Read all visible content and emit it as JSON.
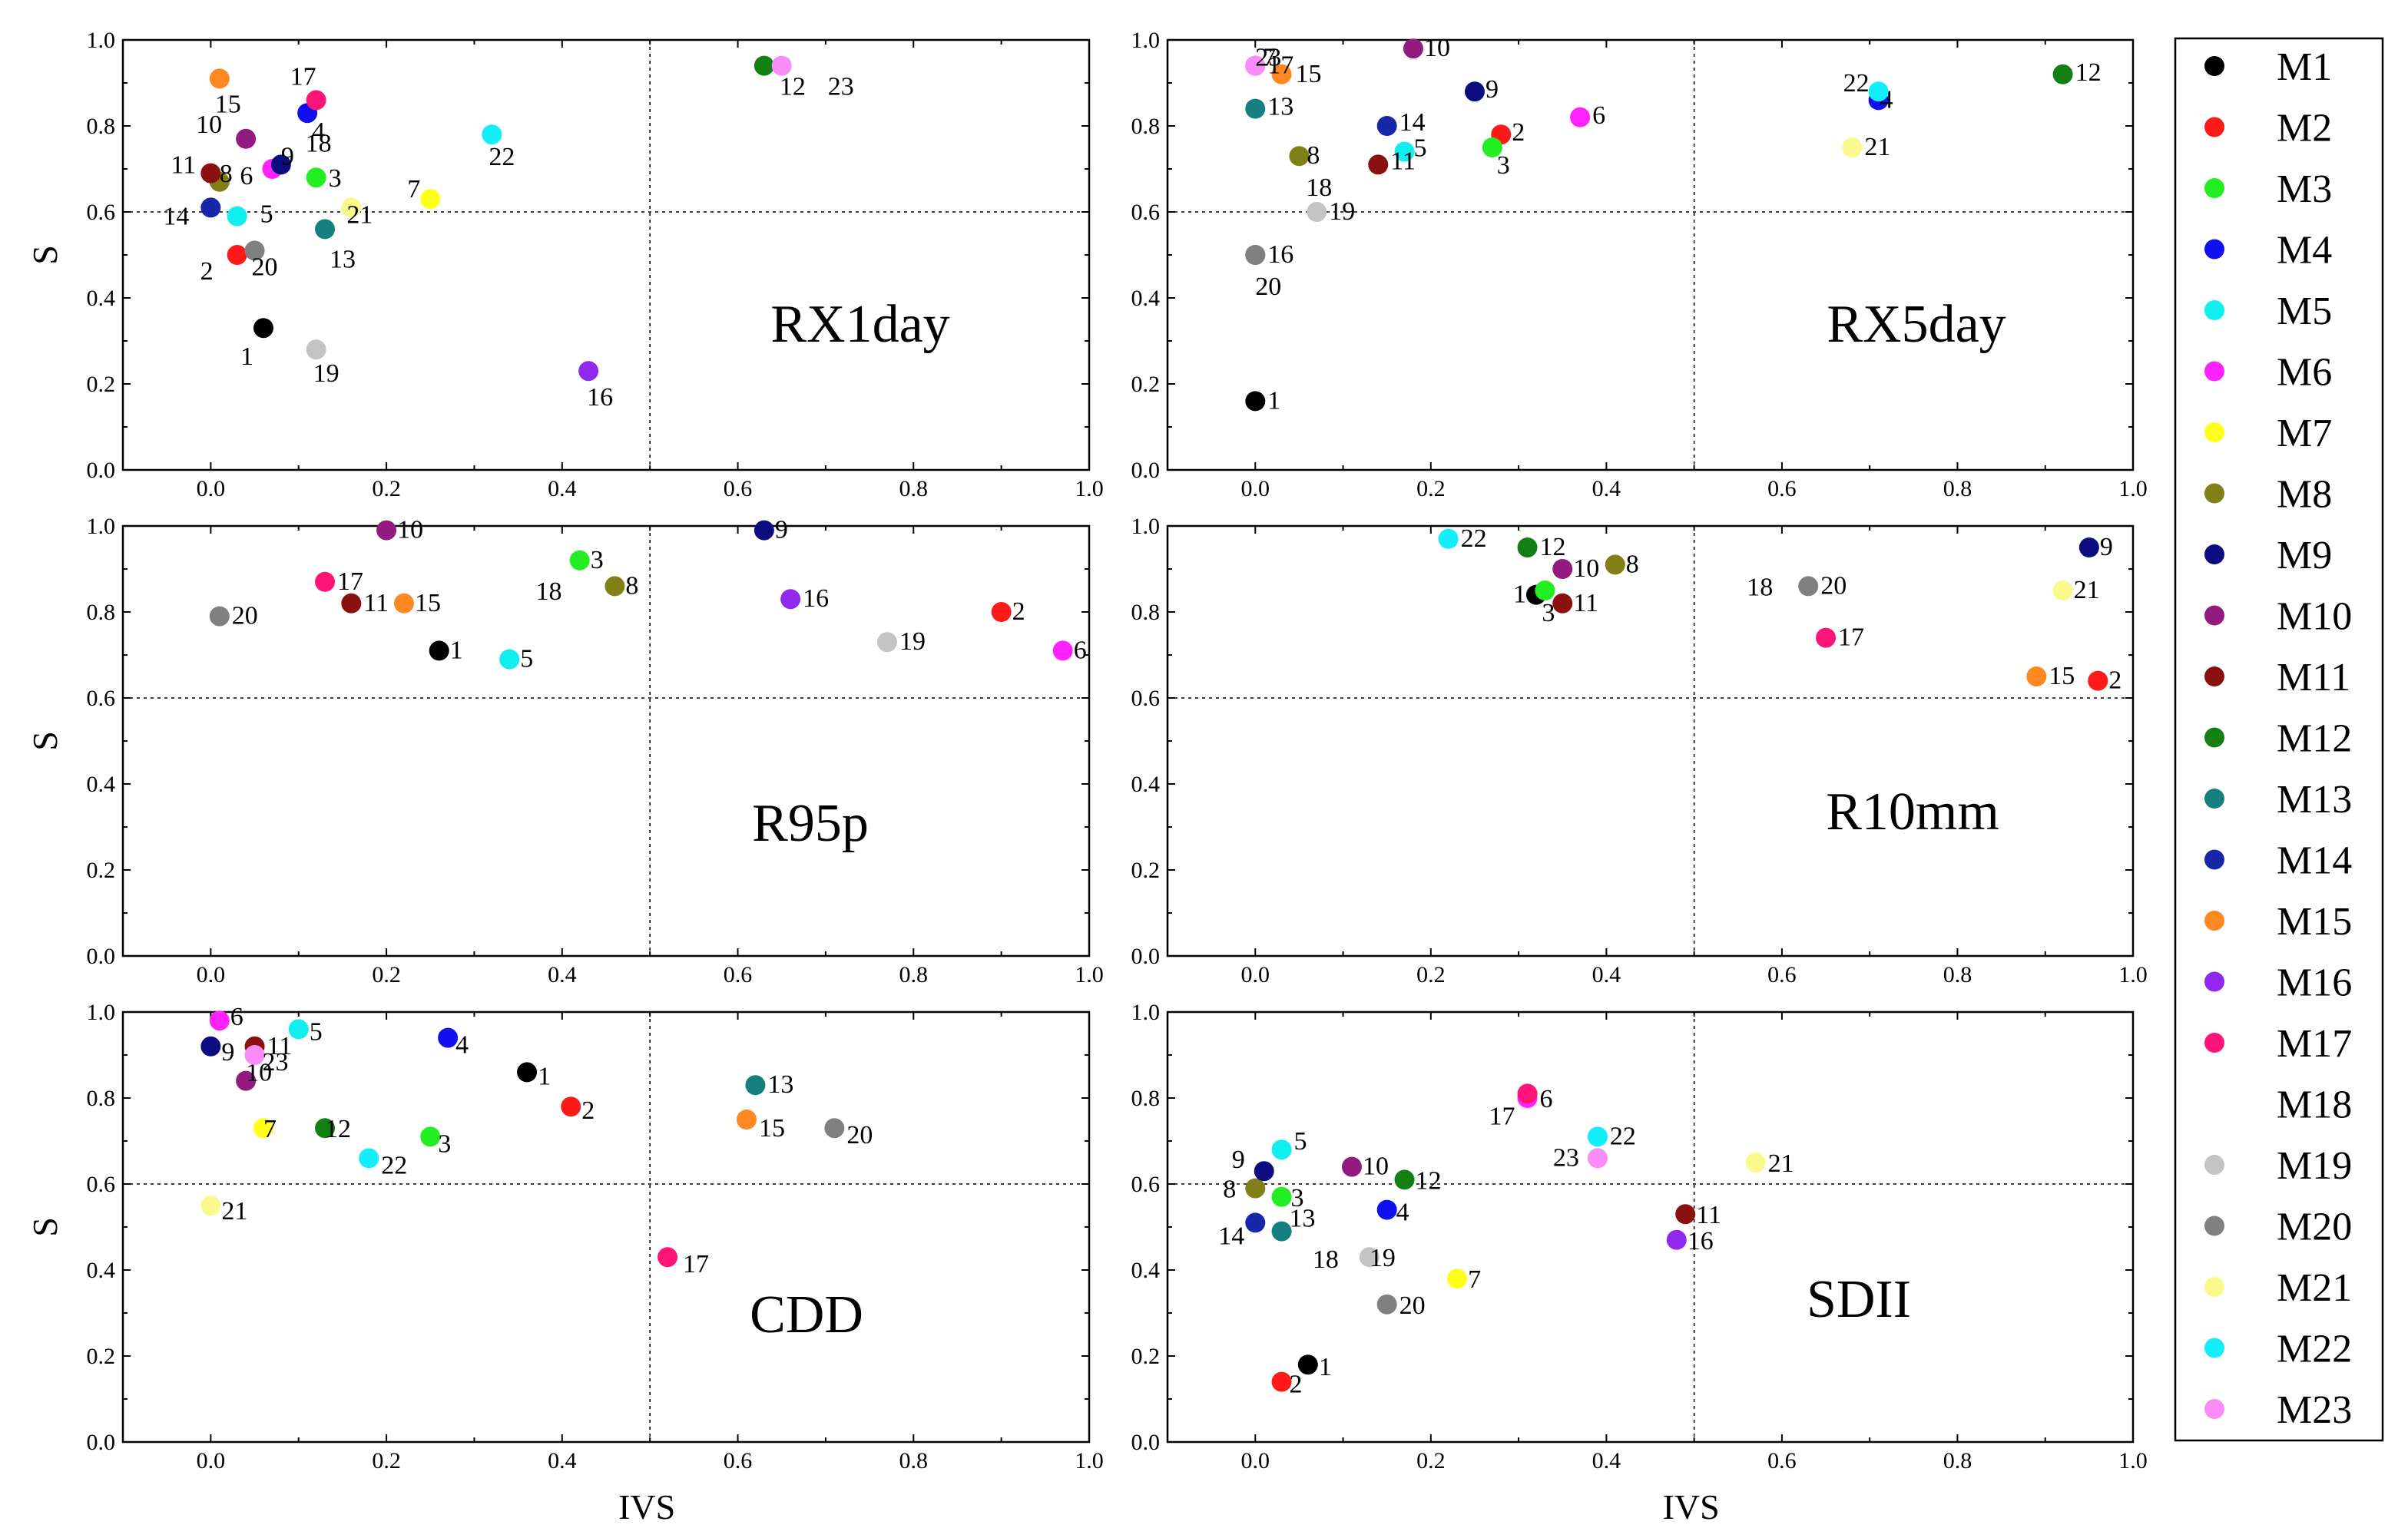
{
  "legend": {
    "items": [
      {
        "label": "M1",
        "color": "#000000"
      },
      {
        "label": "M2",
        "color": "#ff1a1a"
      },
      {
        "label": "M3",
        "color": "#22ee22"
      },
      {
        "label": "M4",
        "color": "#1010ee"
      },
      {
        "label": "M5",
        "color": "#11eeee"
      },
      {
        "label": "M6",
        "color": "#ff22ff"
      },
      {
        "label": "M7",
        "color": "#ffff1a"
      },
      {
        "label": "M8",
        "color": "#808016"
      },
      {
        "label": "M9",
        "color": "#0c0c80"
      },
      {
        "label": "M10",
        "color": "#931b80"
      },
      {
        "label": "M11",
        "color": "#8b1010"
      },
      {
        "label": "M12",
        "color": "#128012"
      },
      {
        "label": "M13",
        "color": "#168080"
      },
      {
        "label": "M14",
        "color": "#1727a8"
      },
      {
        "label": "M15",
        "color": "#ff8820"
      },
      {
        "label": "M16",
        "color": "#9028ee"
      },
      {
        "label": "M17",
        "color": "#ff1578"
      },
      {
        "label": "M18",
        "color": "#ffffff"
      },
      {
        "label": "M19",
        "color": "#c4c4c4"
      },
      {
        "label": "M20",
        "color": "#808080"
      },
      {
        "label": "M21",
        "color": "#fafa8c"
      },
      {
        "label": "M22",
        "color": "#12eefa"
      },
      {
        "label": "M23",
        "color": "#fa8cfa"
      }
    ]
  },
  "chart_data": [
    {
      "type": "scatter",
      "title": "RX1day",
      "xlabel": "",
      "ylabel": "S",
      "xlim": [
        -0.1,
        1.0
      ],
      "ylim": [
        0.0,
        1.0
      ],
      "xref": 0.5,
      "yref": 0.6,
      "xticks": [
        "0.0",
        "0.2",
        "0.4",
        "0.6",
        "0.8",
        "1.0"
      ],
      "yticks": [
        "0.0",
        "0.2",
        "0.4",
        "0.6",
        "0.8",
        "1.0"
      ],
      "points": [
        {
          "id": "1",
          "x": 0.06,
          "y": 0.33
        },
        {
          "id": "2",
          "x": 0.03,
          "y": 0.5
        },
        {
          "id": "3",
          "x": 0.12,
          "y": 0.68
        },
        {
          "id": "4",
          "x": 0.11,
          "y": 0.83
        },
        {
          "id": "5",
          "x": 0.03,
          "y": 0.59
        },
        {
          "id": "6",
          "x": 0.07,
          "y": 0.7
        },
        {
          "id": "7",
          "x": 0.25,
          "y": 0.63
        },
        {
          "id": "8",
          "x": 0.01,
          "y": 0.67
        },
        {
          "id": "9",
          "x": 0.08,
          "y": 0.71
        },
        {
          "id": "10",
          "x": 0.04,
          "y": 0.77
        },
        {
          "id": "11",
          "x": 0.0,
          "y": 0.69
        },
        {
          "id": "12",
          "x": 0.63,
          "y": 0.94
        },
        {
          "id": "13",
          "x": 0.13,
          "y": 0.56
        },
        {
          "id": "14",
          "x": 0.0,
          "y": 0.61
        },
        {
          "id": "15",
          "x": 0.01,
          "y": 0.91
        },
        {
          "id": "16",
          "x": 0.43,
          "y": 0.23
        },
        {
          "id": "17",
          "x": 0.12,
          "y": 0.86
        },
        {
          "id": "18",
          "x": 0.12,
          "y": 0.74
        },
        {
          "id": "19",
          "x": 0.12,
          "y": 0.28
        },
        {
          "id": "20",
          "x": 0.05,
          "y": 0.51
        },
        {
          "id": "21",
          "x": 0.16,
          "y": 0.61
        },
        {
          "id": "22",
          "x": 0.32,
          "y": 0.78
        },
        {
          "id": "23",
          "x": 0.65,
          "y": 0.94
        }
      ]
    },
    {
      "type": "scatter",
      "title": "RX5day",
      "xlabel": "",
      "ylabel": "",
      "xlim": [
        -0.1,
        1.0
      ],
      "ylim": [
        0.0,
        1.0
      ],
      "xref": 0.5,
      "yref": 0.6,
      "xticks": [
        "0.0",
        "0.2",
        "0.4",
        "0.6",
        "0.8",
        "1.0"
      ],
      "yticks": [
        "0.0",
        "0.2",
        "0.4",
        "0.6",
        "0.8",
        "1.0"
      ],
      "points": [
        {
          "id": "1",
          "x": 0.0,
          "y": 0.16
        },
        {
          "id": "2",
          "x": 0.28,
          "y": 0.78
        },
        {
          "id": "3",
          "x": 0.27,
          "y": 0.75
        },
        {
          "id": "4",
          "x": 0.71,
          "y": 0.86
        },
        {
          "id": "5",
          "x": 0.17,
          "y": 0.74
        },
        {
          "id": "6",
          "x": 0.37,
          "y": 0.82
        },
        {
          "id": "7",
          "x": 0.0,
          "y": 0.94
        },
        {
          "id": "8",
          "x": 0.05,
          "y": 0.73
        },
        {
          "id": "9",
          "x": 0.25,
          "y": 0.88
        },
        {
          "id": "10",
          "x": 0.18,
          "y": 0.98
        },
        {
          "id": "11",
          "x": 0.14,
          "y": 0.71
        },
        {
          "id": "12",
          "x": 0.92,
          "y": 0.92
        },
        {
          "id": "13",
          "x": 0.0,
          "y": 0.84
        },
        {
          "id": "14",
          "x": 0.15,
          "y": 0.8
        },
        {
          "id": "15",
          "x": 0.03,
          "y": 0.92
        },
        {
          "id": "16",
          "x": 0.0,
          "y": 0.5
        },
        {
          "id": "17",
          "x": 0.0,
          "y": 0.94
        },
        {
          "id": "18",
          "x": 0.07,
          "y": 0.62
        },
        {
          "id": "19",
          "x": 0.07,
          "y": 0.6
        },
        {
          "id": "20",
          "x": 0.0,
          "y": 0.5
        },
        {
          "id": "21",
          "x": 0.68,
          "y": 0.75
        },
        {
          "id": "22",
          "x": 0.71,
          "y": 0.88
        },
        {
          "id": "23",
          "x": 0.0,
          "y": 0.94
        }
      ]
    },
    {
      "type": "scatter",
      "title": "R95p",
      "xlabel": "",
      "ylabel": "S",
      "xlim": [
        -0.1,
        1.0
      ],
      "ylim": [
        0.0,
        1.0
      ],
      "xref": 0.5,
      "yref": 0.6,
      "xticks": [
        "0.0",
        "0.2",
        "0.4",
        "0.6",
        "0.8",
        "1.0"
      ],
      "yticks": [
        "0.0",
        "0.2",
        "0.4",
        "0.6",
        "0.8",
        "1.0"
      ],
      "points": [
        {
          "id": "1",
          "x": 0.26,
          "y": 0.71
        },
        {
          "id": "2",
          "x": 0.9,
          "y": 0.8
        },
        {
          "id": "3",
          "x": 0.42,
          "y": 0.92
        },
        {
          "id": "5",
          "x": 0.34,
          "y": 0.69
        },
        {
          "id": "6",
          "x": 0.97,
          "y": 0.71
        },
        {
          "id": "8",
          "x": 0.46,
          "y": 0.86
        },
        {
          "id": "9",
          "x": 0.63,
          "y": 0.99
        },
        {
          "id": "10",
          "x": 0.2,
          "y": 0.99
        },
        {
          "id": "11",
          "x": 0.16,
          "y": 0.82
        },
        {
          "id": "15",
          "x": 0.22,
          "y": 0.82
        },
        {
          "id": "16",
          "x": 0.66,
          "y": 0.83
        },
        {
          "id": "17",
          "x": 0.13,
          "y": 0.87
        },
        {
          "id": "18",
          "x": 0.37,
          "y": 0.85
        },
        {
          "id": "19",
          "x": 0.77,
          "y": 0.73
        },
        {
          "id": "20",
          "x": 0.01,
          "y": 0.79
        }
      ]
    },
    {
      "type": "scatter",
      "title": "R10mm",
      "xlabel": "",
      "ylabel": "",
      "xlim": [
        -0.1,
        1.0
      ],
      "ylim": [
        0.0,
        1.0
      ],
      "xref": 0.5,
      "yref": 0.6,
      "xticks": [
        "0.0",
        "0.2",
        "0.4",
        "0.6",
        "0.8",
        "1.0"
      ],
      "yticks": [
        "0.0",
        "0.2",
        "0.4",
        "0.6",
        "0.8",
        "1.0"
      ],
      "points": [
        {
          "id": "1",
          "x": 0.32,
          "y": 0.84
        },
        {
          "id": "2",
          "x": 0.96,
          "y": 0.64
        },
        {
          "id": "3",
          "x": 0.33,
          "y": 0.85
        },
        {
          "id": "8",
          "x": 0.41,
          "y": 0.91
        },
        {
          "id": "9",
          "x": 0.95,
          "y": 0.95
        },
        {
          "id": "10",
          "x": 0.35,
          "y": 0.9
        },
        {
          "id": "11",
          "x": 0.35,
          "y": 0.82
        },
        {
          "id": "12",
          "x": 0.31,
          "y": 0.95
        },
        {
          "id": "15",
          "x": 0.89,
          "y": 0.65
        },
        {
          "id": "17",
          "x": 0.65,
          "y": 0.74
        },
        {
          "id": "18",
          "x": 0.56,
          "y": 0.86
        },
        {
          "id": "20",
          "x": 0.63,
          "y": 0.86
        },
        {
          "id": "21",
          "x": 0.92,
          "y": 0.85
        },
        {
          "id": "22",
          "x": 0.22,
          "y": 0.97
        }
      ]
    },
    {
      "type": "scatter",
      "title": "CDD",
      "xlabel": "IVS",
      "ylabel": "S",
      "xlim": [
        -0.1,
        1.0
      ],
      "ylim": [
        0.0,
        1.0
      ],
      "xref": 0.5,
      "yref": 0.6,
      "xticks": [
        "0.0",
        "0.2",
        "0.4",
        "0.6",
        "0.8",
        "1.0"
      ],
      "yticks": [
        "0.0",
        "0.2",
        "0.4",
        "0.6",
        "0.8",
        "1.0"
      ],
      "points": [
        {
          "id": "1",
          "x": 0.36,
          "y": 0.86
        },
        {
          "id": "2",
          "x": 0.41,
          "y": 0.78
        },
        {
          "id": "3",
          "x": 0.25,
          "y": 0.71
        },
        {
          "id": "4",
          "x": 0.27,
          "y": 0.94
        },
        {
          "id": "5",
          "x": 0.1,
          "y": 0.96
        },
        {
          "id": "6",
          "x": 0.01,
          "y": 0.98
        },
        {
          "id": "7",
          "x": 0.06,
          "y": 0.73
        },
        {
          "id": "9",
          "x": 0.0,
          "y": 0.92
        },
        {
          "id": "10",
          "x": 0.04,
          "y": 0.84
        },
        {
          "id": "11",
          "x": 0.05,
          "y": 0.92
        },
        {
          "id": "12",
          "x": 0.13,
          "y": 0.73
        },
        {
          "id": "13",
          "x": 0.62,
          "y": 0.83
        },
        {
          "id": "15",
          "x": 0.61,
          "y": 0.75
        },
        {
          "id": "17",
          "x": 0.52,
          "y": 0.43
        },
        {
          "id": "20",
          "x": 0.71,
          "y": 0.73
        },
        {
          "id": "21",
          "x": 0.0,
          "y": 0.55
        },
        {
          "id": "22",
          "x": 0.18,
          "y": 0.66
        },
        {
          "id": "23",
          "x": 0.05,
          "y": 0.9
        }
      ]
    },
    {
      "type": "scatter",
      "title": "SDII",
      "xlabel": "IVS",
      "ylabel": "",
      "xlim": [
        -0.1,
        1.0
      ],
      "ylim": [
        0.0,
        1.0
      ],
      "xref": 0.5,
      "yref": 0.6,
      "xticks": [
        "0.0",
        "0.2",
        "0.4",
        "0.6",
        "0.8",
        "1.0"
      ],
      "yticks": [
        "0.0",
        "0.2",
        "0.4",
        "0.6",
        "0.8",
        "1.0"
      ],
      "points": [
        {
          "id": "1",
          "x": 0.06,
          "y": 0.18
        },
        {
          "id": "2",
          "x": 0.03,
          "y": 0.14
        },
        {
          "id": "3",
          "x": 0.03,
          "y": 0.57
        },
        {
          "id": "4",
          "x": 0.15,
          "y": 0.54
        },
        {
          "id": "5",
          "x": 0.03,
          "y": 0.68
        },
        {
          "id": "6",
          "x": 0.31,
          "y": 0.8
        },
        {
          "id": "7",
          "x": 0.23,
          "y": 0.38
        },
        {
          "id": "8",
          "x": 0.0,
          "y": 0.59
        },
        {
          "id": "9",
          "x": 0.01,
          "y": 0.63
        },
        {
          "id": "10",
          "x": 0.11,
          "y": 0.64
        },
        {
          "id": "11",
          "x": 0.49,
          "y": 0.53
        },
        {
          "id": "12",
          "x": 0.17,
          "y": 0.61
        },
        {
          "id": "13",
          "x": 0.03,
          "y": 0.49
        },
        {
          "id": "14",
          "x": 0.0,
          "y": 0.51
        },
        {
          "id": "16",
          "x": 0.48,
          "y": 0.47
        },
        {
          "id": "17",
          "x": 0.31,
          "y": 0.81
        },
        {
          "id": "18",
          "x": 0.06,
          "y": 0.47
        },
        {
          "id": "19",
          "x": 0.13,
          "y": 0.43
        },
        {
          "id": "20",
          "x": 0.15,
          "y": 0.32
        },
        {
          "id": "21",
          "x": 0.57,
          "y": 0.65
        },
        {
          "id": "22",
          "x": 0.39,
          "y": 0.71
        },
        {
          "id": "23",
          "x": 0.39,
          "y": 0.66
        }
      ]
    }
  ]
}
